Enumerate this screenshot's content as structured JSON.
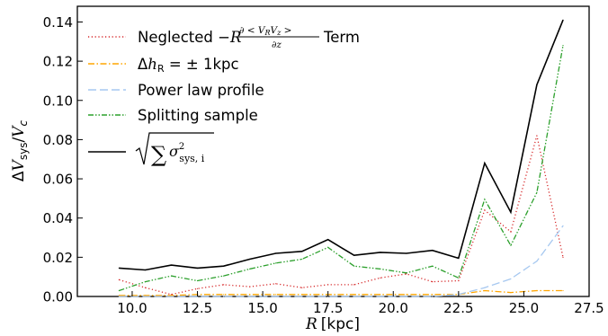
{
  "chart_data": {
    "type": "line",
    "xlabel": "R [kpc]",
    "ylabel": "ΔV_sys/V_c",
    "xlim": [
      7.9,
      27.5
    ],
    "ylim": [
      0,
      0.148
    ],
    "xticks": [
      10.0,
      12.5,
      15.0,
      17.5,
      20.0,
      22.5,
      25.0,
      27.5
    ],
    "xtick_labels": [
      "10.0",
      "12.5",
      "15.0",
      "17.5",
      "20.0",
      "22.5",
      "25.0",
      "27.5"
    ],
    "yticks": [
      0.0,
      0.02,
      0.04,
      0.06,
      0.08,
      0.1,
      0.12,
      0.14
    ],
    "ytick_labels": [
      "0.00",
      "0.02",
      "0.04",
      "0.06",
      "0.08",
      "0.10",
      "0.12",
      "0.14"
    ],
    "grid": false,
    "legend_position": "top-left",
    "x": [
      9.5,
      10.5,
      11.5,
      12.5,
      13.5,
      14.5,
      15.5,
      16.5,
      17.5,
      18.5,
      19.5,
      20.5,
      21.5,
      22.5,
      23.5,
      24.5,
      25.5,
      26.5
    ],
    "series": [
      {
        "name": "Neglected -R ∂<V_R V_z>/∂z Term",
        "legend_label": "Neglected",
        "legend_tail": "Term",
        "style": "dotted",
        "color": "#d62728",
        "values": [
          0.0085,
          0.0045,
          0.001,
          0.004,
          0.006,
          0.005,
          0.0065,
          0.0045,
          0.006,
          0.006,
          0.0095,
          0.0115,
          0.0075,
          0.008,
          0.044,
          0.033,
          0.082,
          0.02
        ]
      },
      {
        "name": "Δh_R = ±1kpc",
        "legend_label": "= ± 1kpc",
        "style": "dashdot",
        "color": "#ffa500",
        "values": [
          0.0005,
          0.0005,
          0.0005,
          0.001,
          0.001,
          0.001,
          0.001,
          0.001,
          0.001,
          0.001,
          0.001,
          0.001,
          0.001,
          0.001,
          0.003,
          0.002,
          0.003,
          0.003
        ]
      },
      {
        "name": "Power law profile",
        "legend_label": "Power law profile",
        "style": "dashed",
        "color": "#a6c8f0",
        "values": [
          0.0,
          0.0,
          0.0,
          0.0,
          0.0,
          0.0,
          0.0,
          0.0,
          0.0,
          0.0,
          0.0,
          0.0,
          0.0,
          0.001,
          0.0045,
          0.009,
          0.018,
          0.036
        ]
      },
      {
        "name": "Splitting sample",
        "legend_label": "Splitting sample",
        "style": "dashdotdot",
        "color": "#2ca02c",
        "values": [
          0.003,
          0.0075,
          0.0105,
          0.008,
          0.0105,
          0.014,
          0.017,
          0.019,
          0.025,
          0.0155,
          0.014,
          0.012,
          0.0155,
          0.0095,
          0.0495,
          0.026,
          0.053,
          0.128
        ]
      },
      {
        "name": "sqrt(Σ σ²_sys,i)",
        "legend_label": "",
        "style": "solid",
        "color": "#000000",
        "values": [
          0.0145,
          0.0135,
          0.016,
          0.0145,
          0.0155,
          0.019,
          0.022,
          0.023,
          0.029,
          0.021,
          0.0225,
          0.022,
          0.0235,
          0.0195,
          0.068,
          0.043,
          0.108,
          0.141
        ]
      }
    ]
  }
}
